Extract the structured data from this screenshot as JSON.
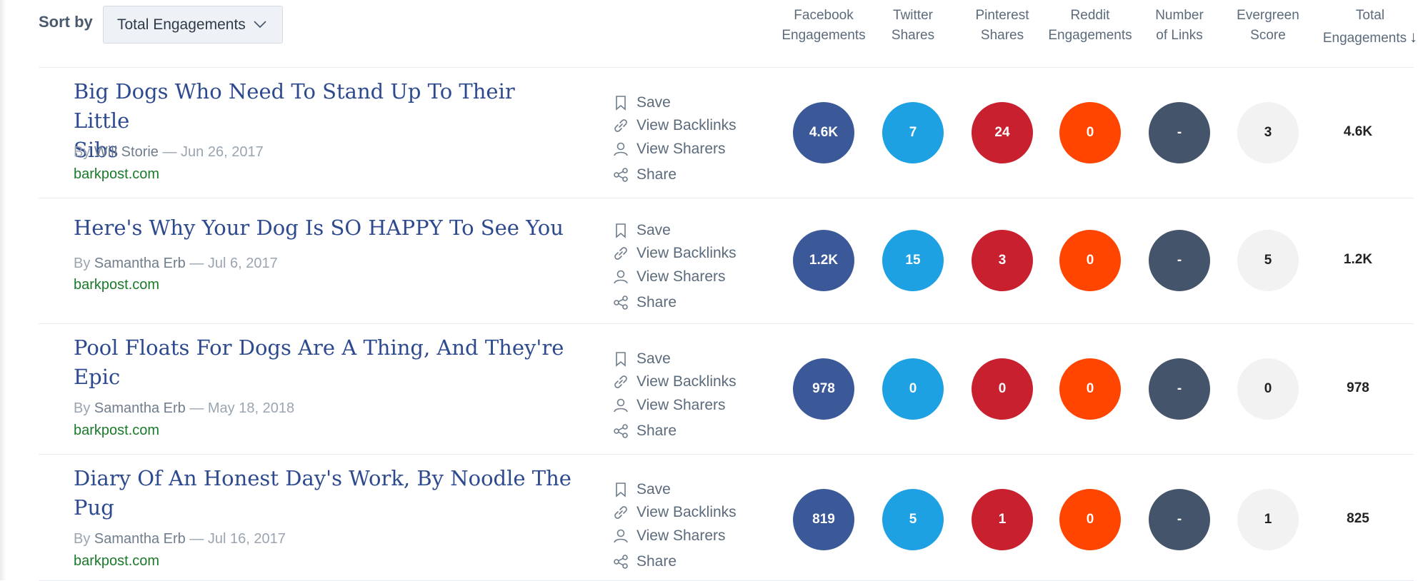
{
  "sort": {
    "label": "Sort by",
    "selected": "Total Engagements"
  },
  "columns": [
    {
      "line1": "Facebook",
      "line2": "Engagements"
    },
    {
      "line1": "Twitter",
      "line2": "Shares"
    },
    {
      "line1": "Pinterest",
      "line2": "Shares"
    },
    {
      "line1": "Reddit",
      "line2": "Engagements"
    },
    {
      "line1": "Number",
      "line2": "of Links"
    },
    {
      "line1": "Evergreen",
      "line2": "Score"
    },
    {
      "line1": "Total",
      "line2": "Engagements",
      "sort_arrow": "↓"
    }
  ],
  "actions": {
    "save": "Save",
    "backlinks": "View Backlinks",
    "sharers": "View Sharers",
    "share": "Share"
  },
  "colors": {
    "facebook": "#3b5998",
    "twitter": "#1da1e2",
    "pinterest": "#c8202f",
    "reddit": "#ff4500",
    "links": "#44546a",
    "evergreen": "#f2f2f2",
    "title": "#2e4a8f",
    "domain": "#1a7a2a"
  },
  "icons": [
    "bookmark-icon",
    "link-icon",
    "user-icon",
    "share-icon",
    "chevron-down-icon",
    "sort-down-arrow-icon"
  ],
  "rows": [
    {
      "title_lines": [
        "Big Dogs Who Need To Stand Up To Their Little",
        "Sibs"
      ],
      "by": "By",
      "author": "Will Storie",
      "date": "— Jun 26, 2017",
      "domain": "barkpost.com",
      "metrics": {
        "facebook": "4.6K",
        "twitter": "7",
        "pinterest": "24",
        "reddit": "0",
        "links": "-",
        "evergreen": "3",
        "total": "4.6K"
      }
    },
    {
      "title_lines": [
        "Here's Why Your Dog Is SO HAPPY To See You"
      ],
      "by": "By",
      "author": "Samantha Erb",
      "date": "— Jul 6, 2017",
      "domain": "barkpost.com",
      "metrics": {
        "facebook": "1.2K",
        "twitter": "15",
        "pinterest": "3",
        "reddit": "0",
        "links": "-",
        "evergreen": "5",
        "total": "1.2K"
      }
    },
    {
      "title_lines": [
        "Pool Floats For Dogs Are A Thing, And They're",
        "Epic"
      ],
      "by": "By",
      "author": "Samantha Erb",
      "date": "— May 18, 2018",
      "domain": "barkpost.com",
      "metrics": {
        "facebook": "978",
        "twitter": "0",
        "pinterest": "0",
        "reddit": "0",
        "links": "-",
        "evergreen": "0",
        "total": "978"
      }
    },
    {
      "title_lines": [
        "Diary Of An Honest Day's Work, By Noodle The",
        "Pug"
      ],
      "by": "By",
      "author": "Samantha Erb",
      "date": "— Jul 16, 2017",
      "domain": "barkpost.com",
      "metrics": {
        "facebook": "819",
        "twitter": "5",
        "pinterest": "1",
        "reddit": "0",
        "links": "-",
        "evergreen": "1",
        "total": "825"
      }
    }
  ]
}
